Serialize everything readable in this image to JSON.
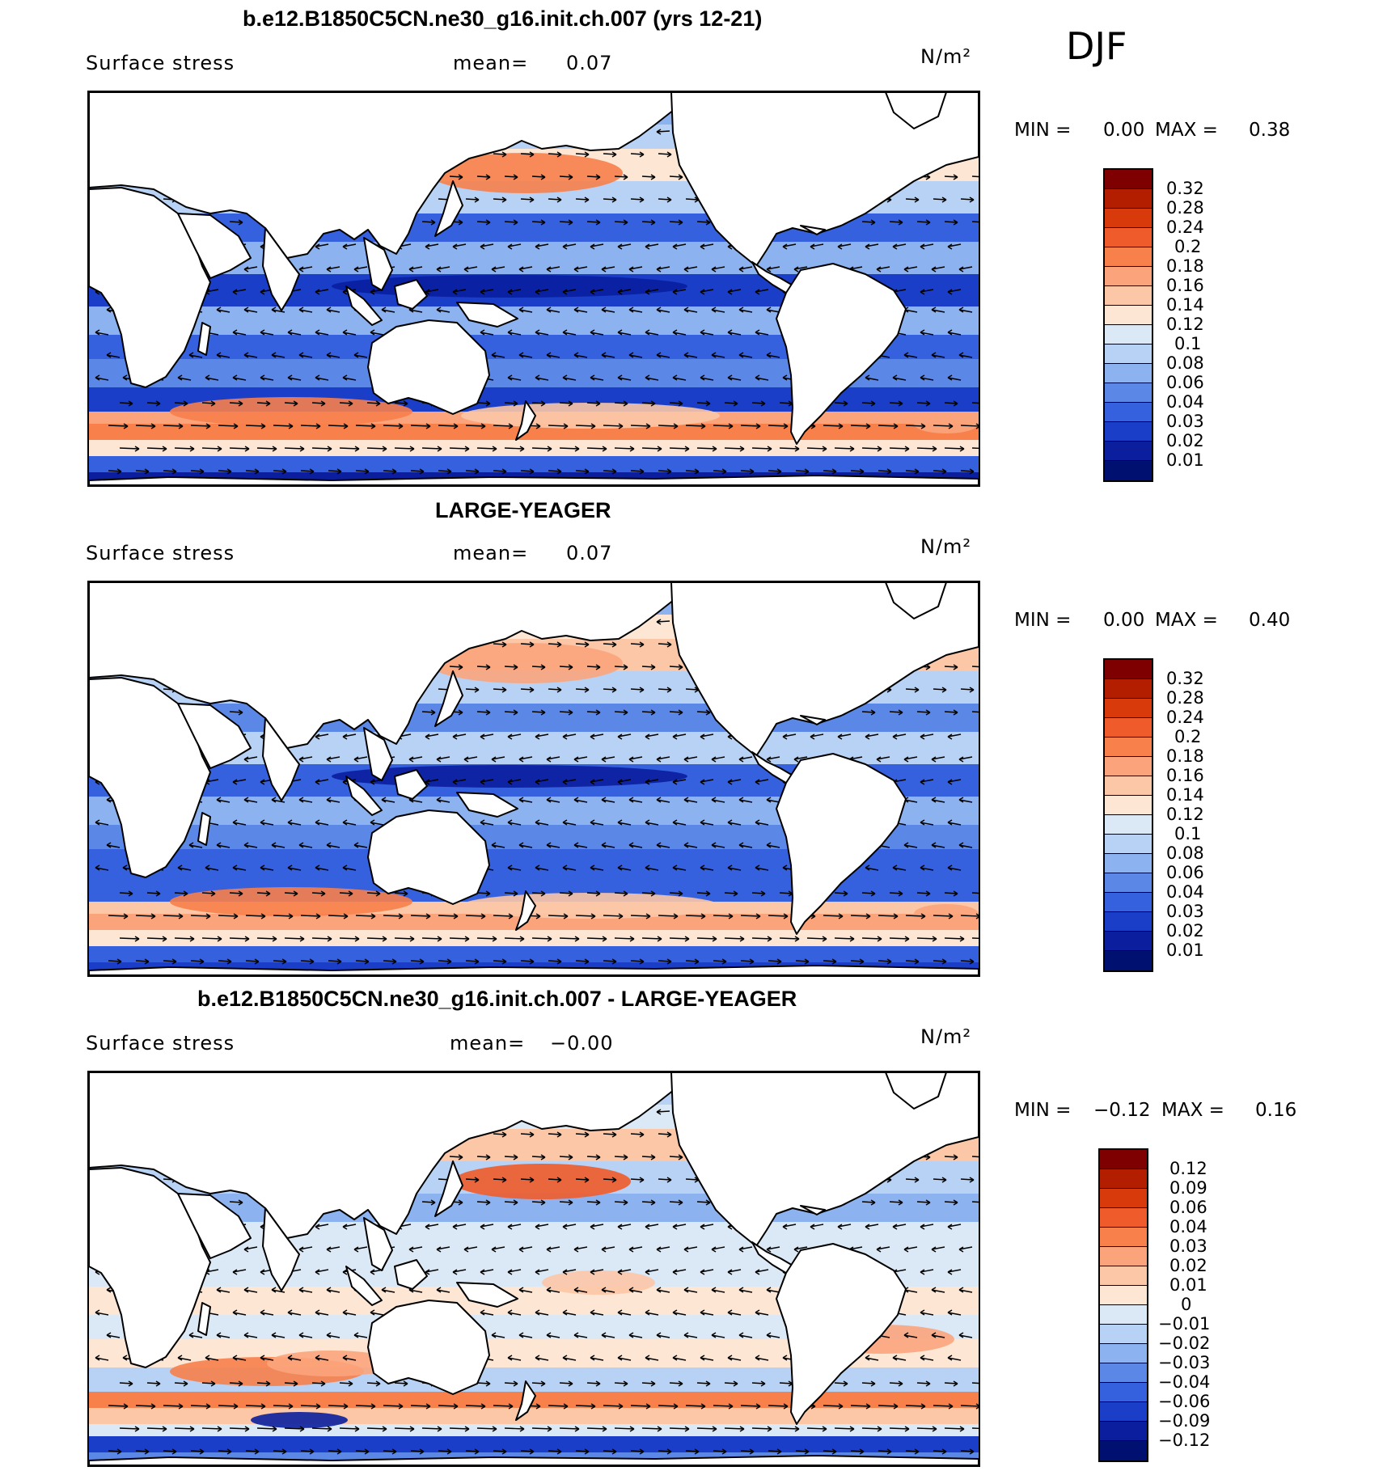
{
  "season": "DJF",
  "panels": [
    {
      "title": "b.e12.B1850C5CN.ne30_g16.init.ch.007 (yrs 12-21)",
      "variable": "Surface stress",
      "mean_label": "mean=",
      "mean_value": "0.07",
      "units": "N/m²",
      "min_label": "MIN =",
      "min_value": "0.00",
      "max_label": "MAX =",
      "max_value": "0.38",
      "colorbar_labels": [
        "0.32",
        "0.28",
        "0.24",
        "0.2",
        "0.18",
        "0.16",
        "0.14",
        "0.12",
        "0.1",
        "0.08",
        "0.06",
        "0.04",
        "0.03",
        "0.02",
        "0.01"
      ]
    },
    {
      "title": "LARGE-YEAGER",
      "variable": "Surface stress",
      "mean_label": "mean=",
      "mean_value": "0.07",
      "units": "N/m²",
      "min_label": "MIN =",
      "min_value": "0.00",
      "max_label": "MAX =",
      "max_value": "0.40",
      "colorbar_labels": [
        "0.32",
        "0.28",
        "0.24",
        "0.2",
        "0.18",
        "0.16",
        "0.14",
        "0.12",
        "0.1",
        "0.08",
        "0.06",
        "0.04",
        "0.03",
        "0.02",
        "0.01"
      ]
    },
    {
      "title": "b.e12.B1850C5CN.ne30_g16.init.ch.007 - LARGE-YEAGER",
      "variable": "Surface stress",
      "mean_label": "mean=",
      "mean_value": "−0.00",
      "units": "N/m²",
      "min_label": "MIN =",
      "min_value": "−0.12",
      "max_label": "MAX =",
      "max_value": "0.16",
      "colorbar_labels": [
        "0.12",
        "0.09",
        "0.06",
        "0.04",
        "0.03",
        "0.02",
        "0.01",
        "0",
        "−0.01",
        "−0.02",
        "−0.03",
        "−0.04",
        "−0.06",
        "−0.09",
        "−0.12"
      ]
    }
  ],
  "colors": {
    "palette": [
      "#7f0000",
      "#b31e00",
      "#d83a0c",
      "#ef5b2a",
      "#f7804b",
      "#fba47c",
      "#fcc7a6",
      "#fde6d4",
      "#dbe9f7",
      "#b7d2f5",
      "#8cb2ef",
      "#5b88e6",
      "#3561de",
      "#1a3ec8",
      "#0a1e9e",
      "#001070"
    ],
    "land": "#ffffff",
    "coast": "#000000"
  }
}
